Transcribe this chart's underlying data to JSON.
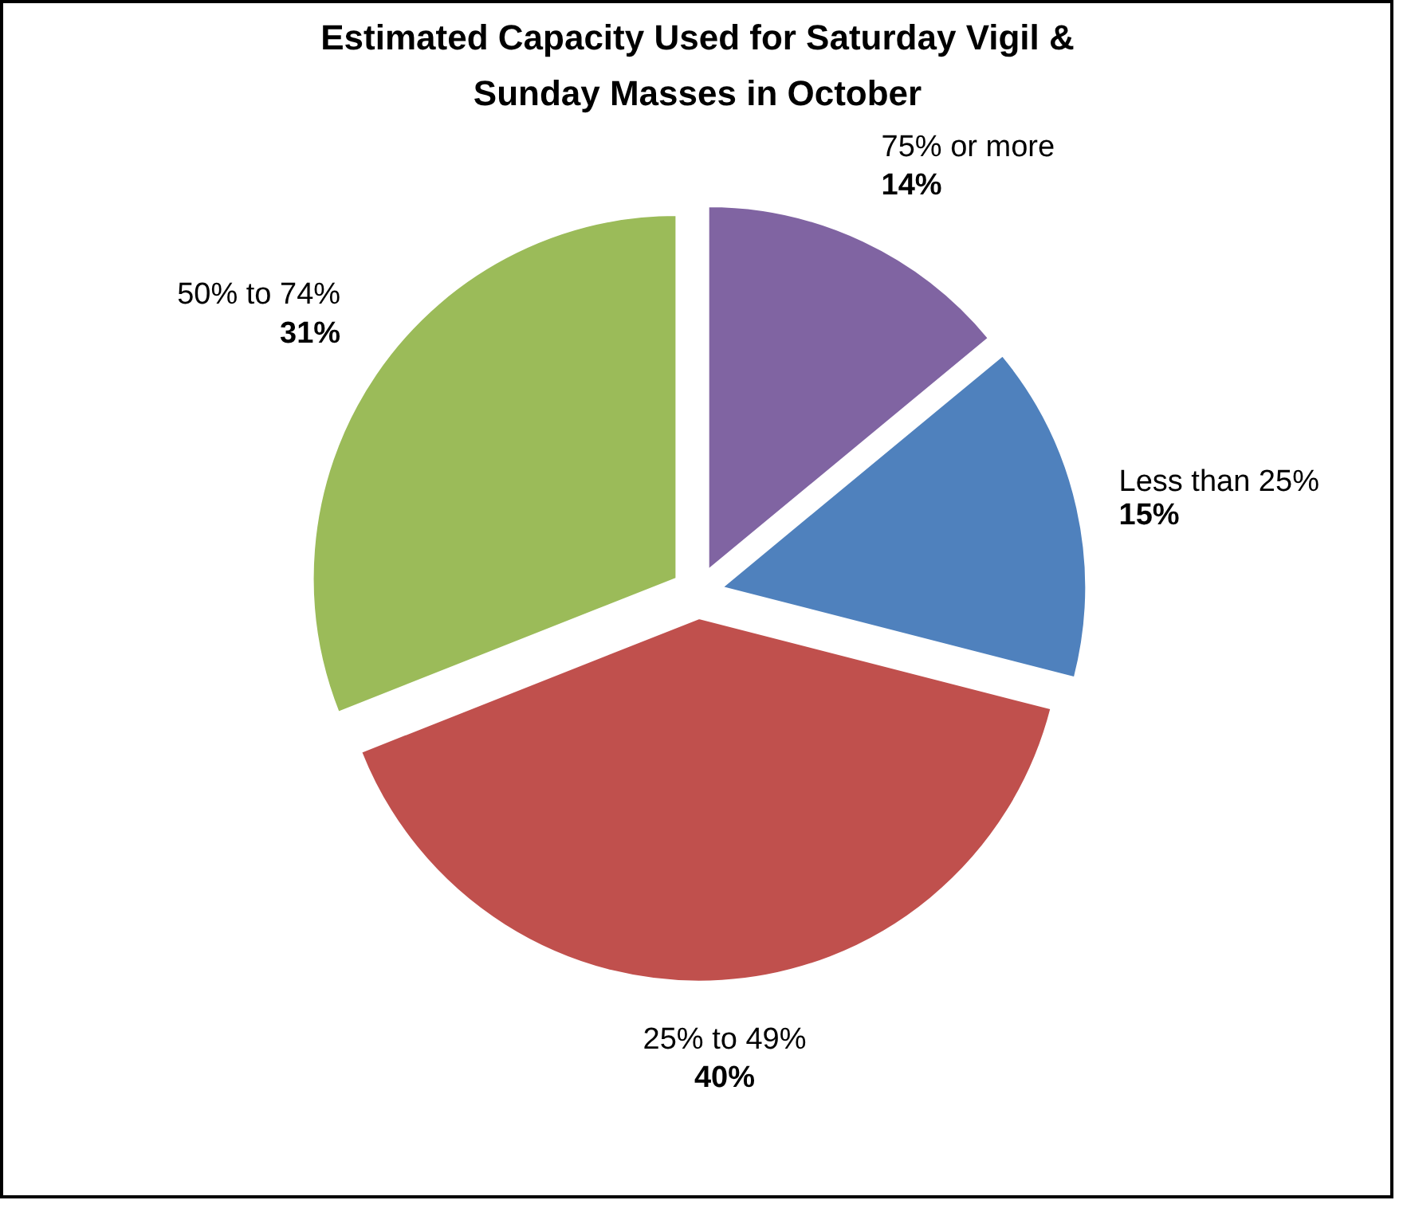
{
  "chart_data": {
    "type": "pie",
    "title": "Estimated Capacity Used for Saturday Vigil & Sunday Masses in October",
    "categories": [
      "75% or more",
      "Less than 25%",
      "25% to 49%",
      "50% to 74%"
    ],
    "values": [
      14,
      15,
      40,
      31
    ],
    "colors": [
      "#8064a2",
      "#4f81bd",
      "#c0504d",
      "#9bbb59"
    ],
    "value_labels": [
      "14%",
      "15%",
      "40%",
      "31%"
    ]
  }
}
